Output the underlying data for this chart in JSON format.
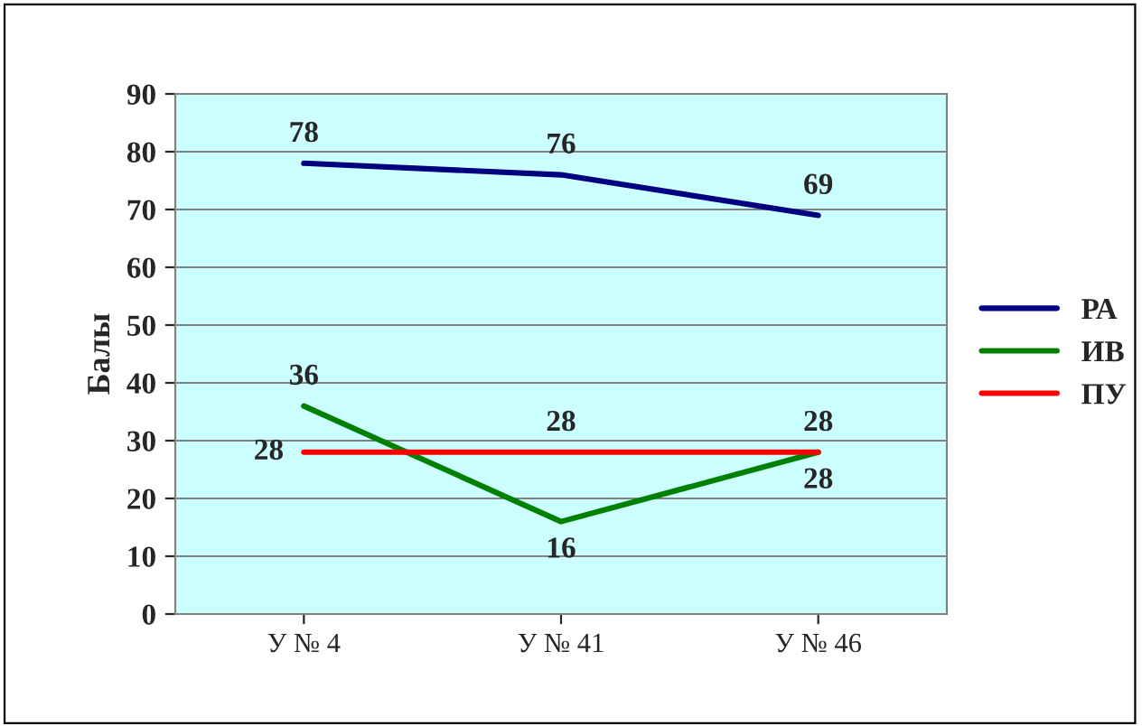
{
  "chart_data": {
    "type": "line",
    "ylabel": "Балы",
    "categories": [
      "У № 4",
      "У № 41",
      "У № 46"
    ],
    "series": [
      {
        "name": "РА",
        "color": "#000080",
        "values": [
          78,
          76,
          69
        ]
      },
      {
        "name": "ИВ",
        "color": "#008000",
        "values": [
          36,
          16,
          28
        ]
      },
      {
        "name": "ПУ",
        "color": "#ff0000",
        "values": [
          28,
          28,
          28
        ]
      }
    ],
    "ylim": [
      0,
      90
    ],
    "yticks": [
      0,
      10,
      20,
      30,
      40,
      50,
      60,
      70,
      80,
      90
    ],
    "grid": "y",
    "legend": "right",
    "data_labels": true,
    "marker": "none",
    "line_style": "solid"
  }
}
